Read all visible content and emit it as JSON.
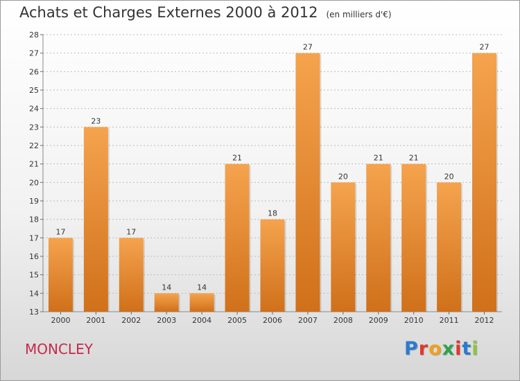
{
  "title": "Achats et Charges Externes 2000 à 2012",
  "subtitle": "(en milliers d'€)",
  "commune": "MONCLEY",
  "logo": {
    "text": "Proxiti",
    "colors": [
      "#2a7bd0",
      "#e2372b",
      "#f0a11a",
      "#2ea24a",
      "#e2372b",
      "#2a7bd0",
      "#8cc63f"
    ]
  },
  "colors": {
    "bar_light": "#f5a34e",
    "bar_dark": "#d0701a",
    "grid": "#bbbbbb",
    "text": "#333333"
  },
  "chart_data": {
    "type": "bar",
    "title": "Achats et Charges Externes 2000 à 2012",
    "subtitle": "(en milliers d'€)",
    "categories": [
      "2000",
      "2001",
      "2002",
      "2003",
      "2004",
      "2005",
      "2006",
      "2007",
      "2008",
      "2009",
      "2010",
      "2011",
      "2012"
    ],
    "values": [
      17,
      23,
      17,
      14,
      14,
      21,
      18,
      27,
      20,
      21,
      21,
      20,
      27
    ],
    "ylim": [
      13,
      28
    ],
    "yticks": [
      13,
      14,
      15,
      16,
      17,
      18,
      19,
      20,
      21,
      22,
      23,
      24,
      25,
      26,
      27,
      28
    ],
    "grid": "horizontal",
    "xlabel": "",
    "ylabel": ""
  }
}
